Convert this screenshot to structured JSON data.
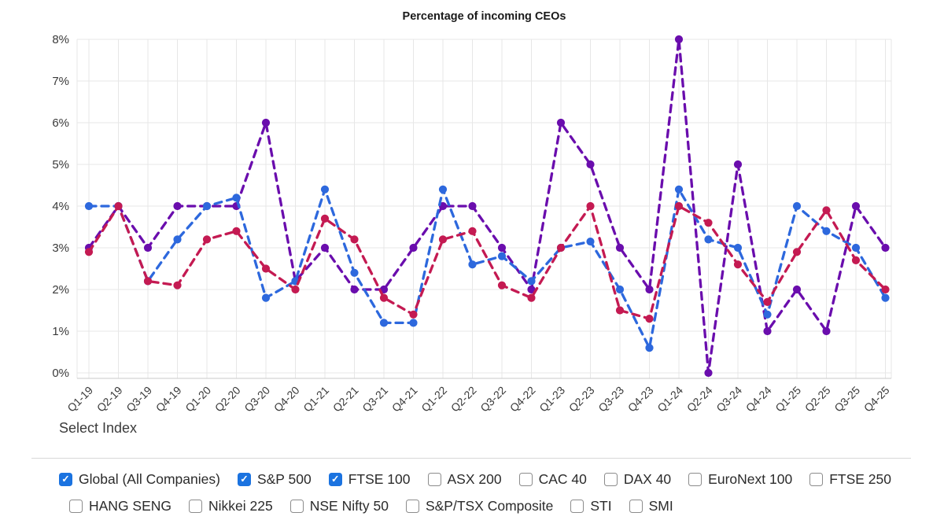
{
  "title": "Percentage of incoming CEOs",
  "chart_data": {
    "type": "line",
    "title": "Percentage of incoming CEOs",
    "line_style": "dashed",
    "marker": "circle",
    "grid": true,
    "legend": "none",
    "ylim": [
      0,
      8
    ],
    "ytick_labels": [
      "0%",
      "1%",
      "2%",
      "3%",
      "4%",
      "5%",
      "6%",
      "7%",
      "8%"
    ],
    "x": [
      "Q1-19",
      "Q2-19",
      "Q3-19",
      "Q4-19",
      "Q1-20",
      "Q2-20",
      "Q3-20",
      "Q4-20",
      "Q1-21",
      "Q2-21",
      "Q3-21",
      "Q4-21",
      "Q1-22",
      "Q2-22",
      "Q3-22",
      "Q4-22",
      "Q1-23",
      "Q2-23",
      "Q3-23",
      "Q4-23",
      "Q1-24",
      "Q2-24",
      "Q3-24",
      "Q4-24",
      "Q1-25",
      "Q2-25",
      "Q3-25",
      "Q4-25"
    ],
    "series": [
      {
        "name": "FTSE 100",
        "color": "#6a0dad",
        "values": [
          3.0,
          4.0,
          3.0,
          4.0,
          4.0,
          4.0,
          6.0,
          2.2,
          3.0,
          2.0,
          2.0,
          3.0,
          4.0,
          4.0,
          3.0,
          2.0,
          6.0,
          5.0,
          3.0,
          2.0,
          8.0,
          0.0,
          5.0,
          1.0,
          2.0,
          1.0,
          4.0,
          3.0
        ]
      },
      {
        "name": "Global (All Companies)",
        "color": "#2d68dd",
        "values": [
          4.0,
          4.0,
          2.2,
          3.2,
          4.0,
          4.2,
          1.8,
          2.2,
          4.4,
          2.4,
          1.2,
          1.2,
          4.4,
          2.6,
          2.8,
          2.2,
          3.0,
          3.15,
          2.0,
          0.6,
          4.4,
          3.2,
          3.0,
          1.4,
          4.0,
          3.4,
          3.0,
          1.8
        ]
      },
      {
        "name": "S&P 500",
        "color": "#c41a52",
        "values": [
          2.9,
          4.0,
          2.2,
          2.1,
          3.2,
          3.4,
          2.5,
          2.0,
          3.7,
          3.2,
          1.8,
          1.4,
          3.2,
          3.4,
          2.1,
          1.8,
          3.0,
          4.0,
          1.5,
          1.3,
          4.0,
          3.6,
          2.6,
          1.7,
          2.9,
          3.9,
          2.7,
          2.0
        ]
      }
    ]
  },
  "index_selector": {
    "label": "Select Index",
    "options": [
      {
        "label": "Global (All Companies)",
        "checked": true
      },
      {
        "label": "S&P 500",
        "checked": true
      },
      {
        "label": "FTSE 100",
        "checked": true
      },
      {
        "label": "ASX 200",
        "checked": false
      },
      {
        "label": "CAC 40",
        "checked": false
      },
      {
        "label": "DAX 40",
        "checked": false
      },
      {
        "label": "EuroNext 100",
        "checked": false
      },
      {
        "label": "FTSE 250",
        "checked": false
      },
      {
        "label": "HANG SENG",
        "checked": false
      },
      {
        "label": "Nikkei 225",
        "checked": false
      },
      {
        "label": "NSE Nifty 50",
        "checked": false
      },
      {
        "label": "S&P/TSX Composite",
        "checked": false
      },
      {
        "label": "STI",
        "checked": false
      },
      {
        "label": "SMI",
        "checked": false
      }
    ]
  },
  "icons": {
    "checkmark": "✓"
  },
  "colors": {
    "grid": "#e7e7e7",
    "axis_line": "#c9c9c9",
    "tick_text": "#3a3a3a",
    "checkbox_checked": "#1b73e0"
  }
}
